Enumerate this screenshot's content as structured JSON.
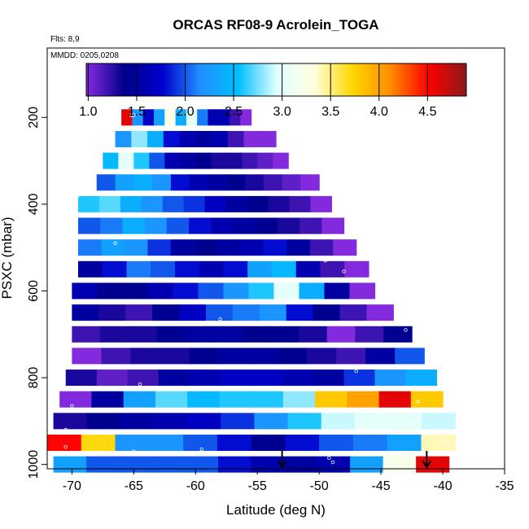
{
  "chart_data": {
    "type": "heatmap",
    "title": "ORCAS RF08-9 Acrolein_TOGA",
    "flights_note": "Flts: 8,9",
    "dates_note": "MMDD: 0205,0208",
    "xlabel": "Latitude (deg N)",
    "ylabel": "PSXC (mbar)",
    "xlim": [
      -72,
      -35
    ],
    "ylim": [
      1010,
      40
    ],
    "x_ticks": [
      -70,
      -65,
      -60,
      -55,
      -50,
      -45,
      -40,
      -35
    ],
    "x_tick_labels": [
      "-70",
      "-65",
      "-60",
      "-55",
      "-50",
      "-45",
      "-40",
      "-35"
    ],
    "y_ticks": [
      200,
      400,
      600,
      800,
      1000
    ],
    "y_tick_labels": [
      "200",
      "400",
      "600",
      "800",
      "1000"
    ],
    "colorbar": {
      "range": [
        0.98,
        4.9
      ],
      "ticks": [
        1.0,
        1.5,
        2.0,
        2.5,
        3.0,
        3.5,
        4.0,
        4.5
      ],
      "tick_labels": [
        "1.0",
        "1.5",
        "2.0",
        "2.5",
        "3.0",
        "3.5",
        "4.0",
        "4.5"
      ],
      "colors": [
        "#8a2be2",
        "#00008b",
        "#0000cd",
        "#1e90ff",
        "#00bfff",
        "#e0ffff",
        "#ffffe0",
        "#ffd700",
        "#ff8c00",
        "#ff0000",
        "#8b1a1a"
      ]
    },
    "bands": [
      {
        "pressure": 200,
        "x_min": -66.0,
        "x_max": -55.5,
        "values": [
          4.6,
          2.2,
          1.7,
          2.3,
          3.3,
          2.4,
          3.0,
          2.1,
          1.6,
          1.6,
          1.2,
          1.0
        ]
      },
      {
        "pressure": 250,
        "x_min": -66.5,
        "x_max": -53.5,
        "values": [
          2.2,
          2.8,
          2.4,
          1.8,
          1.6,
          1.5,
          1.6,
          1.2,
          1.0,
          1.0
        ]
      },
      {
        "pressure": 300,
        "x_min": -67.5,
        "x_max": -52.5,
        "values": [
          2.5,
          3.0,
          2.6,
          2.0,
          1.6,
          1.5,
          1.4,
          1.3,
          1.3,
          1.2,
          1.1,
          1.0
        ]
      },
      {
        "pressure": 350,
        "x_min": -68.0,
        "x_max": -50.0,
        "values": [
          2.0,
          2.3,
          2.4,
          2.2,
          1.8,
          1.6,
          1.5,
          1.4,
          1.3,
          1.2,
          1.1,
          1.0
        ]
      },
      {
        "pressure": 400,
        "x_min": -69.5,
        "x_max": -49.0,
        "values": [
          2.6,
          2.7,
          2.4,
          2.2,
          2.0,
          1.9,
          1.7,
          1.5,
          1.4,
          1.3,
          1.2,
          1.0
        ]
      },
      {
        "pressure": 450,
        "x_min": -69.5,
        "x_max": -48.0,
        "values": [
          2.0,
          2.1,
          2.4,
          2.2,
          2.0,
          1.8,
          1.6,
          1.5,
          1.4,
          1.3,
          1.2,
          1.0
        ]
      },
      {
        "pressure": 500,
        "x_min": -69.5,
        "x_max": -47.0,
        "values": [
          2.1,
          2.3,
          2.2,
          1.9,
          1.5,
          1.4,
          1.5,
          1.6,
          1.8,
          1.5,
          1.2,
          1.0
        ]
      },
      {
        "pressure": 550,
        "x_min": -69.5,
        "x_max": -46.0,
        "values": [
          1.5,
          1.8,
          2.1,
          2.0,
          1.8,
          1.6,
          1.8,
          2.3,
          2.5,
          1.6,
          1.2,
          1.0
        ]
      },
      {
        "pressure": 600,
        "x_min": -70.0,
        "x_max": -45.5,
        "values": [
          1.6,
          1.4,
          1.4,
          1.6,
          1.8,
          2.0,
          2.2,
          2.6,
          3.0,
          2.4,
          1.5,
          1.0
        ]
      },
      {
        "pressure": 650,
        "x_min": -70.0,
        "x_max": -44.0,
        "values": [
          1.5,
          1.3,
          1.2,
          1.4,
          1.7,
          2.0,
          2.1,
          2.2,
          1.8,
          1.4,
          1.2,
          1.0
        ]
      },
      {
        "pressure": 700,
        "x_min": -70.0,
        "x_max": -42.5,
        "values": [
          1.2,
          1.3,
          1.3,
          1.4,
          1.5,
          1.5,
          1.4,
          1.4,
          1.3,
          1.0,
          1.2,
          1.4
        ]
      },
      {
        "pressure": 750,
        "x_min": -70.0,
        "x_max": -41.5,
        "values": [
          1.0,
          1.2,
          1.3,
          1.3,
          1.4,
          1.5,
          1.5,
          1.4,
          1.3,
          1.2,
          1.5,
          2.0
        ]
      },
      {
        "pressure": 800,
        "x_min": -70.5,
        "x_max": -40.5,
        "values": [
          1.3,
          1.1,
          1.2,
          1.5,
          1.6,
          1.7,
          1.7,
          1.6,
          1.5,
          1.9,
          2.2,
          2.4
        ]
      },
      {
        "pressure": 850,
        "x_min": -71.0,
        "x_max": -40.0,
        "values": [
          1.0,
          1.5,
          2.3,
          2.7,
          2.5,
          2.6,
          2.6,
          2.8,
          3.8,
          4.0,
          4.6,
          3.8
        ]
      },
      {
        "pressure": 900,
        "x_min": -71.5,
        "x_max": -39.0,
        "values": [
          1.3,
          1.4,
          1.5,
          1.6,
          1.7,
          1.9,
          2.2,
          2.6,
          2.9,
          3.0,
          3.0,
          2.9
        ]
      },
      {
        "pressure": 950,
        "x_min": -72.0,
        "x_max": -39.0,
        "values": [
          4.5,
          3.7,
          2.2,
          2.2,
          2.0,
          1.8,
          1.4,
          1.8,
          2.0,
          2.1,
          2.3,
          3.4
        ]
      },
      {
        "pressure": 1000,
        "x_min": -71.5,
        "x_max": -39.5,
        "values": [
          2.3,
          2.0,
          2.0,
          2.0,
          2.0,
          1.8,
          1.6,
          1.5,
          1.6,
          2.3,
          3.2,
          4.6
        ]
      }
    ],
    "sample_points": [
      {
        "lat": -65.2,
        "p": 195
      },
      {
        "lat": -65.0,
        "p": 195
      },
      {
        "lat": -69.5,
        "p": 380
      },
      {
        "lat": -66.5,
        "p": 490
      },
      {
        "lat": -49.5,
        "p": 530
      },
      {
        "lat": -48.0,
        "p": 555
      },
      {
        "lat": -58.0,
        "p": 665
      },
      {
        "lat": -49.0,
        "p": 675
      },
      {
        "lat": -43.0,
        "p": 690
      },
      {
        "lat": -47.0,
        "p": 785
      },
      {
        "lat": -64.5,
        "p": 815
      },
      {
        "lat": -70.0,
        "p": 865
      },
      {
        "lat": -42.0,
        "p": 855
      },
      {
        "lat": -70.5,
        "p": 920
      },
      {
        "lat": -40.0,
        "p": 945
      },
      {
        "lat": -70.5,
        "p": 960
      },
      {
        "lat": -68.5,
        "p": 975
      },
      {
        "lat": -65.0,
        "p": 970
      },
      {
        "lat": -59.5,
        "p": 965
      },
      {
        "lat": -49.2,
        "p": 985
      },
      {
        "lat": -48.9,
        "p": 995
      }
    ],
    "arrows": [
      {
        "lat": -53.0,
        "label": ""
      },
      {
        "lat": -41.3,
        "label": ""
      }
    ]
  }
}
